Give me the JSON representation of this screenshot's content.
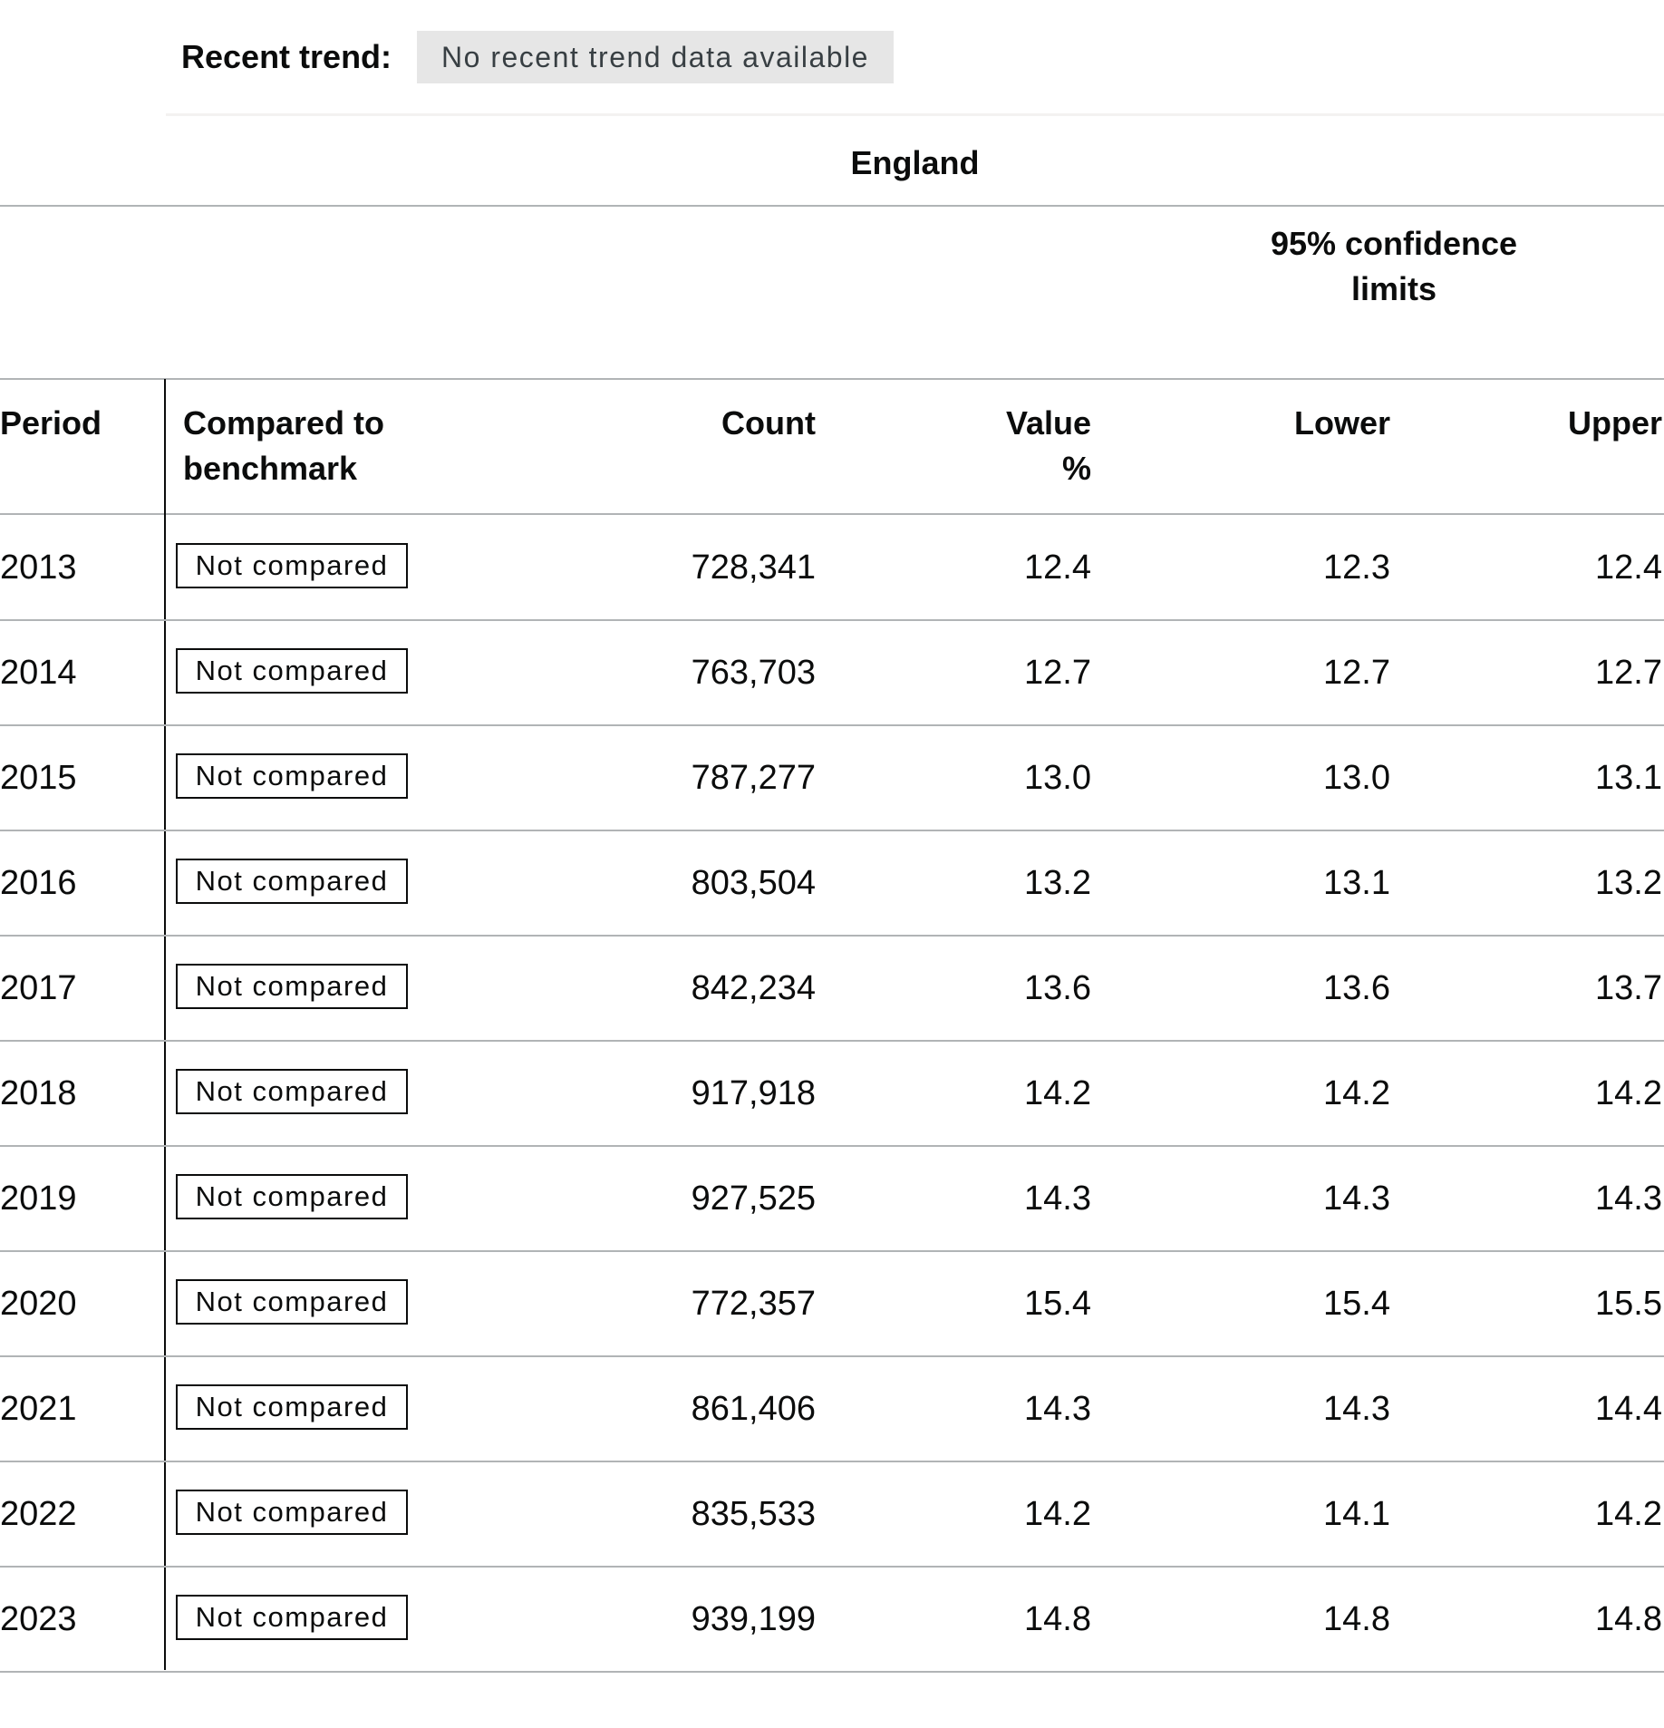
{
  "trend": {
    "label": "Recent trend:",
    "value": "No recent trend data available"
  },
  "table": {
    "area_title": "England",
    "ci_title": "95% confidence limits",
    "headers": {
      "period": "Period",
      "compared": "Compared to benchmark",
      "count": "Count",
      "value": "Value %",
      "lower": "Lower",
      "upper": "Upper"
    },
    "rows": [
      {
        "period": "2013",
        "compared": "Not compared",
        "count": "728,341",
        "value": "12.4",
        "lower": "12.3",
        "upper": "12.4"
      },
      {
        "period": "2014",
        "compared": "Not compared",
        "count": "763,703",
        "value": "12.7",
        "lower": "12.7",
        "upper": "12.7"
      },
      {
        "period": "2015",
        "compared": "Not compared",
        "count": "787,277",
        "value": "13.0",
        "lower": "13.0",
        "upper": "13.1"
      },
      {
        "period": "2016",
        "compared": "Not compared",
        "count": "803,504",
        "value": "13.2",
        "lower": "13.1",
        "upper": "13.2"
      },
      {
        "period": "2017",
        "compared": "Not compared",
        "count": "842,234",
        "value": "13.6",
        "lower": "13.6",
        "upper": "13.7"
      },
      {
        "period": "2018",
        "compared": "Not compared",
        "count": "917,918",
        "value": "14.2",
        "lower": "14.2",
        "upper": "14.2"
      },
      {
        "period": "2019",
        "compared": "Not compared",
        "count": "927,525",
        "value": "14.3",
        "lower": "14.3",
        "upper": "14.3"
      },
      {
        "period": "2020",
        "compared": "Not compared",
        "count": "772,357",
        "value": "15.4",
        "lower": "15.4",
        "upper": "15.5"
      },
      {
        "period": "2021",
        "compared": "Not compared",
        "count": "861,406",
        "value": "14.3",
        "lower": "14.3",
        "upper": "14.4"
      },
      {
        "period": "2022",
        "compared": "Not compared",
        "count": "835,533",
        "value": "14.2",
        "lower": "14.1",
        "upper": "14.2"
      },
      {
        "period": "2023",
        "compared": "Not compared",
        "count": "939,199",
        "value": "14.8",
        "lower": "14.8",
        "upper": "14.8"
      }
    ]
  },
  "colors": {
    "text": "#0b0c0c",
    "trend_tag_bg": "#e6e6e6",
    "border": "#b1b4b6"
  }
}
